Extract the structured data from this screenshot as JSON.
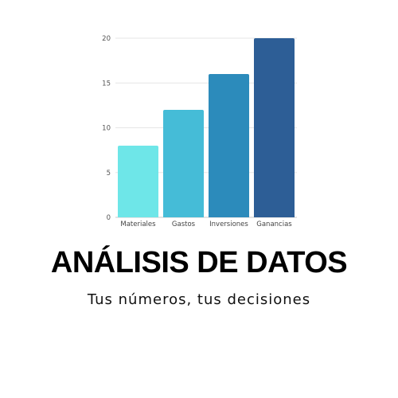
{
  "title": "ANÁLISIS DE DATOS",
  "subtitle": "Tus números, tus decisiones",
  "chart_data": {
    "type": "bar",
    "categories": [
      "Materiales",
      "Gastos",
      "Inversiones",
      "Ganancias"
    ],
    "values": [
      8,
      12,
      16,
      20
    ],
    "ylim": [
      0,
      20
    ],
    "yticks": [
      0,
      5,
      10,
      15,
      20
    ],
    "grid": true,
    "colors": [
      "#6ee6e8",
      "#45bcd7",
      "#2c8bbb",
      "#2d5e96"
    ],
    "xlabel": "",
    "ylabel": ""
  }
}
